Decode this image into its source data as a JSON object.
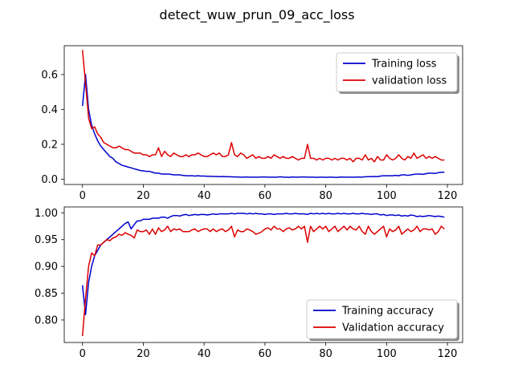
{
  "figure": {
    "title": "detect_wuw_prun_09_acc_loss"
  },
  "chart_data": [
    {
      "type": "line",
      "xlim": [
        -6,
        125
      ],
      "ylim": [
        -0.03,
        0.765
      ],
      "xticks": [
        0,
        20,
        40,
        60,
        80,
        100,
        120
      ],
      "yticks": [
        0.0,
        0.2,
        0.4,
        0.6
      ],
      "ytick_labels": [
        "0.0",
        "0.2",
        "0.4",
        "0.6"
      ],
      "legend_position": "top-right",
      "series": [
        {
          "name": "Training loss",
          "color": "#0000cc",
          "x_start": 0,
          "values": [
            0.42,
            0.6,
            0.4,
            0.31,
            0.26,
            0.22,
            0.19,
            0.17,
            0.15,
            0.13,
            0.12,
            0.1,
            0.09,
            0.08,
            0.075,
            0.07,
            0.065,
            0.06,
            0.055,
            0.05,
            0.048,
            0.045,
            0.045,
            0.04,
            0.035,
            0.035,
            0.03,
            0.03,
            0.03,
            0.028,
            0.025,
            0.025,
            0.025,
            0.022,
            0.02,
            0.02,
            0.02,
            0.018,
            0.02,
            0.018,
            0.018,
            0.017,
            0.017,
            0.016,
            0.016,
            0.015,
            0.016,
            0.015,
            0.014,
            0.014,
            0.013,
            0.013,
            0.012,
            0.012,
            0.013,
            0.012,
            0.012,
            0.012,
            0.012,
            0.013,
            0.013,
            0.012,
            0.012,
            0.012,
            0.012,
            0.014,
            0.012,
            0.012,
            0.011,
            0.013,
            0.012,
            0.012,
            0.013,
            0.013,
            0.012,
            0.012,
            0.012,
            0.011,
            0.012,
            0.012,
            0.011,
            0.012,
            0.012,
            0.011,
            0.011,
            0.013,
            0.012,
            0.012,
            0.012,
            0.012,
            0.012,
            0.013,
            0.012,
            0.014,
            0.015,
            0.015,
            0.016,
            0.015,
            0.018,
            0.02,
            0.02,
            0.02,
            0.02,
            0.022,
            0.02,
            0.025,
            0.025,
            0.022,
            0.025,
            0.028,
            0.03,
            0.03,
            0.028,
            0.032,
            0.035,
            0.035,
            0.033,
            0.038,
            0.04,
            0.04
          ]
        },
        {
          "name": "validation loss",
          "color": "#dd0000",
          "x_start": 0,
          "values": [
            0.74,
            0.55,
            0.35,
            0.29,
            0.3,
            0.26,
            0.24,
            0.21,
            0.2,
            0.19,
            0.18,
            0.18,
            0.19,
            0.18,
            0.17,
            0.17,
            0.16,
            0.15,
            0.15,
            0.15,
            0.14,
            0.14,
            0.13,
            0.14,
            0.14,
            0.18,
            0.13,
            0.16,
            0.14,
            0.13,
            0.15,
            0.14,
            0.13,
            0.13,
            0.14,
            0.13,
            0.14,
            0.14,
            0.15,
            0.14,
            0.13,
            0.13,
            0.14,
            0.15,
            0.14,
            0.15,
            0.13,
            0.13,
            0.14,
            0.21,
            0.14,
            0.13,
            0.15,
            0.14,
            0.12,
            0.13,
            0.14,
            0.12,
            0.13,
            0.12,
            0.12,
            0.13,
            0.12,
            0.14,
            0.13,
            0.12,
            0.13,
            0.12,
            0.12,
            0.13,
            0.12,
            0.11,
            0.12,
            0.12,
            0.2,
            0.12,
            0.12,
            0.11,
            0.12,
            0.11,
            0.12,
            0.12,
            0.11,
            0.12,
            0.11,
            0.12,
            0.12,
            0.11,
            0.12,
            0.1,
            0.12,
            0.12,
            0.11,
            0.14,
            0.11,
            0.12,
            0.1,
            0.13,
            0.11,
            0.11,
            0.14,
            0.12,
            0.11,
            0.12,
            0.14,
            0.12,
            0.11,
            0.13,
            0.12,
            0.15,
            0.12,
            0.13,
            0.14,
            0.12,
            0.13,
            0.12,
            0.13,
            0.12,
            0.11,
            0.11
          ]
        }
      ]
    },
    {
      "type": "line",
      "xlim": [
        -6,
        125
      ],
      "ylim": [
        0.758,
        1.011
      ],
      "xticks": [
        0,
        20,
        40,
        60,
        80,
        100,
        120
      ],
      "yticks": [
        0.8,
        0.85,
        0.9,
        0.95,
        1.0
      ],
      "ytick_labels": [
        "0.80",
        "0.85",
        "0.90",
        "0.95",
        "1.00"
      ],
      "legend_position": "bottom-right",
      "series": [
        {
          "name": "Training accuracy",
          "color": "#0000cc",
          "x_start": 0,
          "values": [
            0.865,
            0.81,
            0.87,
            0.9,
            0.92,
            0.93,
            0.94,
            0.945,
            0.95,
            0.955,
            0.96,
            0.965,
            0.97,
            0.975,
            0.98,
            0.983,
            0.97,
            0.978,
            0.985,
            0.985,
            0.988,
            0.988,
            0.988,
            0.99,
            0.99,
            0.99,
            0.992,
            0.992,
            0.99,
            0.993,
            0.995,
            0.995,
            0.994,
            0.996,
            0.997,
            0.995,
            0.996,
            0.997,
            0.996,
            0.997,
            0.997,
            0.996,
            0.997,
            0.998,
            0.997,
            0.998,
            0.998,
            0.998,
            0.998,
            0.999,
            0.998,
            0.999,
            0.999,
            0.999,
            0.998,
            0.999,
            0.998,
            0.999,
            0.998,
            0.998,
            0.997,
            0.998,
            0.998,
            0.997,
            0.998,
            0.998,
            0.998,
            0.999,
            0.998,
            0.998,
            0.999,
            0.998,
            0.998,
            0.998,
            0.997,
            0.999,
            0.998,
            0.999,
            0.998,
            0.999,
            0.998,
            0.999,
            0.998,
            0.998,
            0.999,
            0.998,
            0.999,
            0.998,
            0.998,
            0.999,
            0.998,
            0.998,
            0.999,
            0.998,
            0.998,
            0.997,
            0.998,
            0.998,
            0.996,
            0.997,
            0.995,
            0.996,
            0.996,
            0.995,
            0.996,
            0.994,
            0.995,
            0.994,
            0.996,
            0.995,
            0.993,
            0.994,
            0.993,
            0.994,
            0.995,
            0.994,
            0.993,
            0.994,
            0.993,
            0.992
          ]
        },
        {
          "name": "Validation accuracy",
          "color": "#dd0000",
          "x_start": 0,
          "values": [
            0.77,
            0.84,
            0.9,
            0.925,
            0.92,
            0.94,
            0.94,
            0.945,
            0.95,
            0.948,
            0.953,
            0.955,
            0.96,
            0.958,
            0.963,
            0.96,
            0.958,
            0.953,
            0.968,
            0.965,
            0.965,
            0.968,
            0.96,
            0.97,
            0.96,
            0.972,
            0.965,
            0.968,
            0.975,
            0.965,
            0.97,
            0.968,
            0.97,
            0.965,
            0.965,
            0.965,
            0.968,
            0.97,
            0.965,
            0.968,
            0.97,
            0.97,
            0.965,
            0.97,
            0.965,
            0.968,
            0.97,
            0.965,
            0.968,
            0.975,
            0.955,
            0.968,
            0.965,
            0.965,
            0.97,
            0.968,
            0.965,
            0.96,
            0.962,
            0.965,
            0.97,
            0.972,
            0.968,
            0.975,
            0.97,
            0.97,
            0.965,
            0.97,
            0.972,
            0.968,
            0.97,
            0.975,
            0.97,
            0.975,
            0.945,
            0.975,
            0.965,
            0.97,
            0.975,
            0.97,
            0.975,
            0.965,
            0.97,
            0.975,
            0.965,
            0.97,
            0.975,
            0.968,
            0.975,
            0.97,
            0.968,
            0.975,
            0.965,
            0.96,
            0.975,
            0.965,
            0.96,
            0.965,
            0.97,
            0.975,
            0.955,
            0.97,
            0.965,
            0.968,
            0.975,
            0.96,
            0.965,
            0.97,
            0.965,
            0.968,
            0.975,
            0.965,
            0.97,
            0.97,
            0.968,
            0.97,
            0.96,
            0.965,
            0.975,
            0.97
          ]
        }
      ]
    }
  ]
}
